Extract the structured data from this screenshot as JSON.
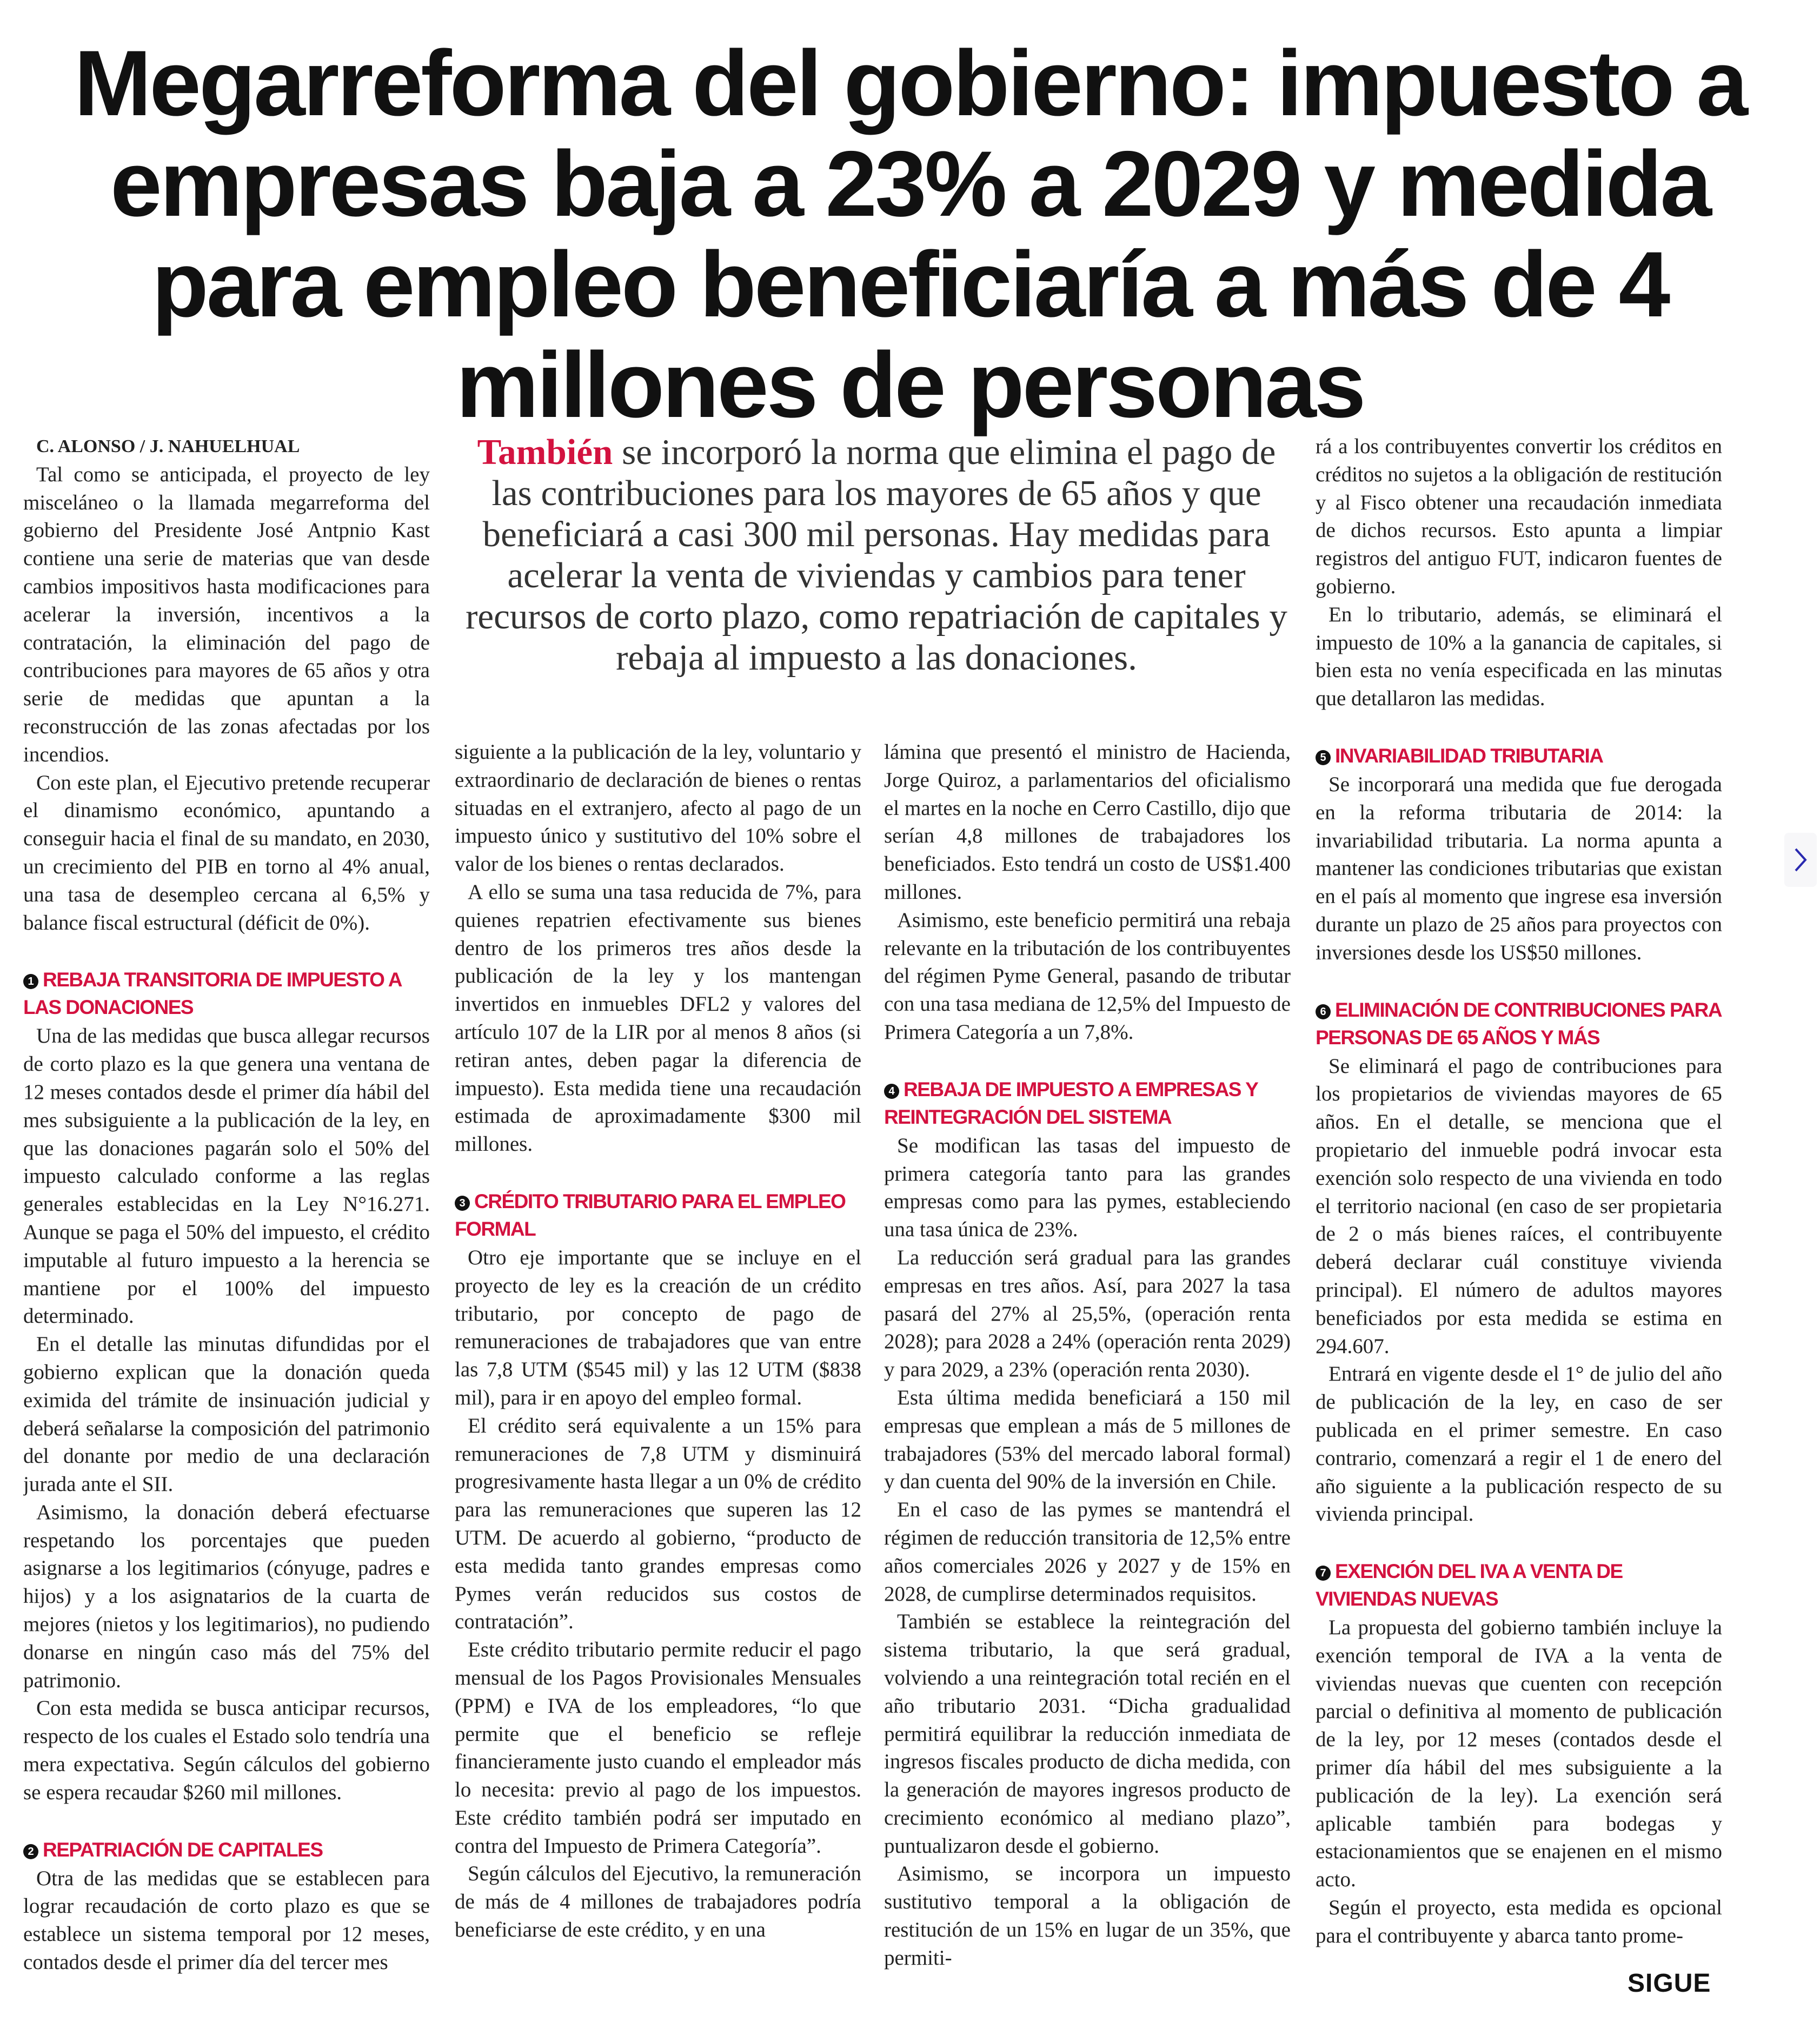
{
  "headline_lines": [
    "Megarreforma del gobierno: impuesto a",
    "empresas baja a 23% a 2029 y medida",
    "para empleo beneficiaría a más de 4",
    "millones de personas"
  ],
  "deck": {
    "lead": "También",
    "text": " se incorporó la norma que elimina el pago de las contribuciones para los mayores de 65 años y que beneficiará a casi 300 mil personas. Hay medidas para acelerar la venta de viviendas y cambios para tener recursos de corto plazo, como repatriación de capitales y rebaja al impuesto a las donaciones."
  },
  "colors": {
    "accent": "#d3123f",
    "text": "#222222"
  },
  "columns": [
    {
      "blocks": [
        {
          "type": "byline",
          "text": "C. ALONSO / J. NAHUELHUAL"
        },
        {
          "type": "p",
          "text": "Tal como se anticipada, el proyecto de ley misceláneo o la llamada megarreforma del gobierno del Presidente José Antpnio Kast contiene una serie de materias que van desde cambios impositivos hasta modificaciones para acelerar la inversión, incentivos a la contratación, la eliminación del pago de contribuciones para mayores de 65 años y otra serie de medidas que apuntan a la reconstrucción de las zonas afectadas por los incendios."
        },
        {
          "type": "p",
          "text": "Con este plan, el Ejecutivo pretende recuperar el dinamismo económico, apuntando a conseguir hacia el final de su mandato, en 2030, un crecimiento del PIB en torno al 4% anual, una tasa de desempleo cercana al 6,5% y balance fiscal estructural (déficit de 0%)."
        },
        {
          "type": "h",
          "num": "1",
          "text": "REBAJA TRANSITORIA DE IMPUESTO A LAS DONACIONES"
        },
        {
          "type": "p",
          "text": "Una de las medidas que busca allegar recursos de corto plazo es la que genera una ventana de 12 meses contados desde el primer día hábil del mes subsiguiente a la publicación de la ley, en que las donaciones pagarán solo el 50% del impuesto calculado conforme a las reglas generales establecidas en la Ley N°16.271. Aunque se paga el 50% del impuesto, el crédito imputable al futuro impuesto a la herencia se mantiene por el 100% del impuesto determinado."
        },
        {
          "type": "p",
          "text": "En el detalle las minutas difundidas por el gobierno explican que la donación queda eximida del trámite de insinuación judicial y deberá señalarse la composición del patrimonio del donante por medio de una declaración jurada ante el SII."
        },
        {
          "type": "p",
          "text": "Asimismo, la donación deberá efectuarse respetando los porcentajes que pueden asignarse a los legitimarios (cónyuge, padres e hijos) y a los asignatarios de la cuarta de mejores (nietos y los legitimarios), no pudiendo donarse en ningún caso más del 75% del patrimonio."
        },
        {
          "type": "p",
          "text": "Con esta medida se busca anticipar recursos, respecto de los cuales el Estado solo tendría una mera expectativa. Según cálculos del gobierno se espera recaudar $260 mil millones."
        },
        {
          "type": "h",
          "num": "2",
          "text": "REPATRIACIÓN DE CAPITALES"
        },
        {
          "type": "p",
          "text": "Otra de las medidas que se establecen para lograr recaudación de corto plazo es que se establece un sistema temporal por 12 meses, contados desde el primer día del tercer mes"
        }
      ]
    },
    {
      "blocks": [
        {
          "type": "cont",
          "text": "siguiente a la publicación de la ley, voluntario y extraordinario de declaración de bienes o rentas situadas en el extranjero, afecto al pago de un impuesto único y sustitutivo del 10% sobre el valor de los bienes o rentas declarados."
        },
        {
          "type": "p",
          "text": "A ello se suma una tasa reducida de 7%, para quienes repatrien efectivamente sus bienes dentro de los primeros tres años desde la publicación de la ley y los mantengan invertidos en inmuebles DFL2 y valores del artículo 107 de la LIR por al menos 8 años (si retiran antes, deben pagar la diferencia de impuesto). Esta medida tiene una recaudación estimada de aproximadamente $300 mil millones."
        },
        {
          "type": "h",
          "num": "3",
          "text": "CRÉDITO TRIBUTARIO PARA EL EMPLEO FORMAL"
        },
        {
          "type": "p",
          "text": "Otro eje importante que se incluye en el proyecto de ley es la creación de un crédito tributario, por concepto de pago de remuneraciones de trabajadores que van entre las 7,8 UTM ($545 mil) y las 12 UTM ($838 mil), para ir en apoyo del empleo formal."
        },
        {
          "type": "p",
          "text": "El crédito será equivalente a un 15% para remuneraciones de 7,8 UTM y disminuirá progresivamente hasta llegar a un 0% de crédito para las remuneraciones que superen las 12 UTM. De acuerdo al gobierno, “producto de esta medida tanto grandes empresas como Pymes verán reducidos sus costos de contratación”."
        },
        {
          "type": "p",
          "text": "Este crédito tributario permite reducir el pago mensual de los Pagos Provisionales Mensuales (PPM) e IVA de los empleadores, “lo que permite que el beneficio se refleje financieramente justo cuando el empleador más lo necesita: previo al pago de los impuestos. Este crédito también podrá ser imputado en contra del Impuesto de Primera Categoría”."
        },
        {
          "type": "p",
          "text": "Según cálculos del Ejecutivo, la remuneración de más de 4 millones de trabajadores podría beneficiarse de este crédito, y en una"
        }
      ]
    },
    {
      "blocks": [
        {
          "type": "cont",
          "text": "lámina que presentó el ministro de Hacienda, Jorge Quiroz, a parlamentarios del oficialismo el martes en la noche en Cerro Castillo, dijo que serían 4,8 millones de trabajadores los beneficiados. Esto tendrá un costo de US$1.400 millones."
        },
        {
          "type": "p",
          "text": "Asimismo, este beneficio permitirá una rebaja relevante en la tributación de los contribuyentes del régimen Pyme General, pasando de tributar con una tasa mediana de 12,5% del Impuesto de Primera Categoría a un 7,8%."
        },
        {
          "type": "h",
          "num": "4",
          "text": "REBAJA DE IMPUESTO A EMPRESAS Y REINTEGRACIÓN DEL SISTEMA"
        },
        {
          "type": "p",
          "text": "Se modifican las tasas del impuesto de primera categoría tanto para las grandes empresas como para las pymes, estableciendo una tasa única de 23%."
        },
        {
          "type": "p",
          "text": "La reducción será gradual para las grandes empresas en tres años. Así, para 2027 la tasa pasará del 27% al 25,5%, (operación renta 2028); para 2028 a 24% (operación renta 2029) y para 2029, a 23% (operación renta 2030)."
        },
        {
          "type": "p",
          "text": "Esta última medida beneficiará a 150 mil empresas que emplean a más de 5 millones de trabajadores (53% del mercado laboral formal) y dan cuenta del 90% de la inversión en Chile."
        },
        {
          "type": "p",
          "text": "En el caso de las pymes se mantendrá el régimen de reducción transitoria de 12,5% entre años comerciales 2026 y 2027 y de 15% en 2028, de cumplirse determinados requisitos."
        },
        {
          "type": "p",
          "text": "También se establece la reintegración del sistema tributario, la que será gradual, volviendo a una reintegración total recién en el año tributario 2031. “Dicha gradualidad permitirá equilibrar la reducción inmediata de ingresos fiscales producto de dicha medida, con la generación de mayores ingresos producto de crecimiento económico al mediano plazo”, puntualizaron desde el gobierno."
        },
        {
          "type": "p",
          "text": "Asimismo, se incorpora un impuesto sustitutivo temporal a la obligación de restitución de un 15% en lugar de un 35%, que permiti-"
        }
      ]
    },
    {
      "blocks": [
        {
          "type": "cont",
          "text": "rá a los contribuyentes convertir los créditos en créditos no sujetos a la obligación de restitución y al Fisco obtener una recaudación inmediata de dichos recursos. Esto apunta a limpiar registros del antiguo FUT, indicaron fuentes de gobierno."
        },
        {
          "type": "p",
          "text": "En lo tributario, además, se eliminará el impuesto de 10% a la ganancia de capitales, si bien esta no venía especificada en las minutas que detallaron las medidas."
        },
        {
          "type": "h",
          "num": "5",
          "text": "INVARIABILIDAD TRIBUTARIA"
        },
        {
          "type": "p",
          "text": "Se incorporará una medida que fue derogada en la reforma tributaria de 2014: la invariabilidad tributaria. La norma apunta a mantener las condiciones tributarias que existan en el país al momento que ingrese esa inversión durante un plazo de 25 años para proyectos con inversiones desde los US$50 millones."
        },
        {
          "type": "h",
          "num": "6",
          "text": "ELIMINACIÓN DE CONTRIBUCIONES PARA PERSONAS DE 65 AÑOS Y MÁS"
        },
        {
          "type": "p",
          "text": "Se eliminará el pago de contribuciones para los propietarios de viviendas mayores de 65 años. En el detalle, se menciona que el propietario del inmueble podrá invocar esta exención solo respecto de una vivienda en todo el territorio nacional (en caso de ser propietaria de 2 o más bienes raíces, el contribuyente deberá declarar cuál constituye vivienda principal). El número de adultos mayores beneficiados por esta medida se estima en 294.607."
        },
        {
          "type": "p",
          "text": "Entrará en vigente desde el 1° de julio del año de publicación de la ley, en caso de ser publicada en el primer semestre. En caso contrario, comenzará a regir el 1 de enero del año siguiente a la publicación respecto de su vivienda principal."
        },
        {
          "type": "h",
          "num": "7",
          "text": "EXENCIÓN DEL IVA A VENTA DE VIVIENDAS NUEVAS"
        },
        {
          "type": "p",
          "text": "La propuesta del gobierno también incluye la exención temporal de IVA a la venta de viviendas nuevas que cuenten con recepción parcial o definitiva al momento de publicación de la ley, por 12 meses (contados desde el primer día hábil del mes subsiguiente a la publicación de la ley). La exención será aplicable también para bodegas y estacionamientos que se enajenen en el mismo acto."
        },
        {
          "type": "p",
          "text": "Según el proyecto, esta medida es opcional para el contribuyente y abarca tanto prome-"
        }
      ]
    }
  ],
  "footer": {
    "continue_label": "SIGUE"
  },
  "navigation": {
    "next_icon": "chevron-right-icon"
  }
}
